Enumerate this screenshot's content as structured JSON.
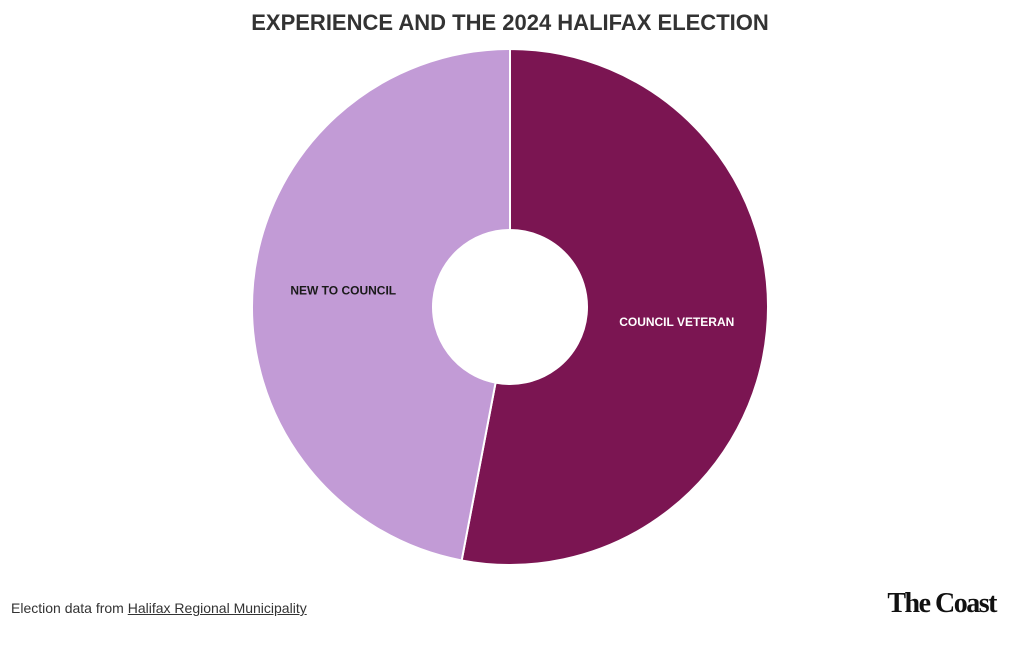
{
  "chart_data": {
    "type": "pie",
    "title": "EXPERIENCE AND THE 2024 HALIFAX ELECTION",
    "categories": [
      "COUNCIL VETERAN",
      "NEW TO COUNCIL"
    ],
    "values": [
      53,
      47
    ],
    "colors": [
      "#7b1552",
      "#c29bd6"
    ],
    "label_colors": [
      "#ffffff",
      "#1a1a1a"
    ]
  },
  "footer": {
    "source_prefix": "Election data from",
    "source_link": "Halifax Regional Municipality",
    "logo": "The Coast"
  }
}
